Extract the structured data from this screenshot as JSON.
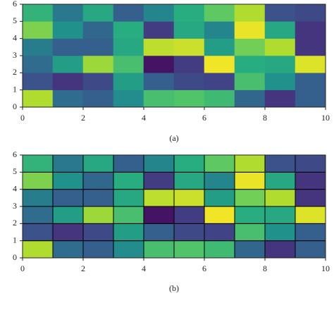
{
  "chart_data": [
    {
      "type": "heatmap",
      "caption": "(a)",
      "colormap": "viridis",
      "clim": [
        0,
        1
      ],
      "xlim": [
        0,
        10
      ],
      "ylim": [
        0,
        6
      ],
      "xticks": [
        0,
        2,
        4,
        6,
        8,
        10
      ],
      "yticks": [
        0,
        1,
        2,
        3,
        4,
        5,
        6
      ],
      "values": [
        [
          0.88,
          0.35,
          0.3,
          0.48,
          0.7,
          0.72,
          0.68,
          0.33,
          0.15,
          0.3
        ],
        [
          0.25,
          0.15,
          0.22,
          0.55,
          0.3,
          0.22,
          0.2,
          0.7,
          0.5,
          0.3
        ],
        [
          0.35,
          0.55,
          0.85,
          0.7,
          0.05,
          0.18,
          0.98,
          0.62,
          0.6,
          0.95
        ],
        [
          0.42,
          0.3,
          0.3,
          0.6,
          0.9,
          0.92,
          0.55,
          0.78,
          0.88,
          0.15
        ],
        [
          0.8,
          0.5,
          0.33,
          0.62,
          0.18,
          0.6,
          0.45,
          0.97,
          0.6,
          0.15
        ],
        [
          0.65,
          0.4,
          0.6,
          0.3,
          0.45,
          0.62,
          0.75,
          0.88,
          0.25,
          0.22
        ]
      ]
    },
    {
      "type": "heatmap",
      "caption": "(b)",
      "colormap": "viridis",
      "clim": [
        0,
        1
      ],
      "edgecolor": "#000000",
      "xlim": [
        0,
        10
      ],
      "ylim": [
        0,
        6
      ],
      "xticks": [
        0,
        2,
        4,
        6,
        8,
        10
      ],
      "yticks": [
        0,
        1,
        2,
        3,
        4,
        5,
        6
      ],
      "values": [
        [
          0.88,
          0.35,
          0.3,
          0.48,
          0.7,
          0.72,
          0.68,
          0.33,
          0.15,
          0.3
        ],
        [
          0.25,
          0.15,
          0.22,
          0.55,
          0.3,
          0.22,
          0.2,
          0.7,
          0.5,
          0.3
        ],
        [
          0.35,
          0.55,
          0.85,
          0.7,
          0.05,
          0.18,
          0.98,
          0.62,
          0.6,
          0.95
        ],
        [
          0.42,
          0.3,
          0.3,
          0.6,
          0.9,
          0.92,
          0.55,
          0.78,
          0.88,
          0.15
        ],
        [
          0.8,
          0.5,
          0.33,
          0.62,
          0.18,
          0.6,
          0.45,
          0.97,
          0.6,
          0.15
        ],
        [
          0.65,
          0.4,
          0.6,
          0.3,
          0.45,
          0.62,
          0.75,
          0.88,
          0.25,
          0.22
        ]
      ]
    }
  ]
}
